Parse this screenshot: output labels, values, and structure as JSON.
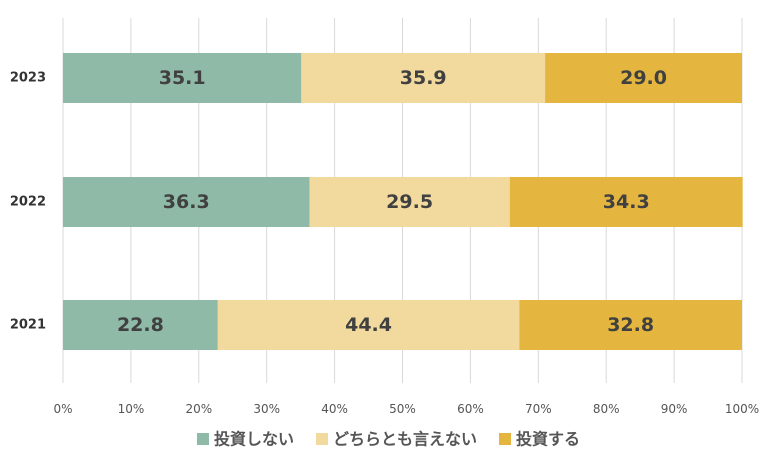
{
  "chart_data": {
    "type": "bar",
    "orientation": "horizontal",
    "stacked": true,
    "title": "",
    "xlabel": "",
    "ylabel": "",
    "xlim": [
      0,
      100
    ],
    "x_ticks": [
      "0%",
      "10%",
      "20%",
      "30%",
      "40%",
      "50%",
      "60%",
      "70%",
      "80%",
      "90%",
      "100%"
    ],
    "categories": [
      "2023",
      "2022",
      "2021"
    ],
    "series": [
      {
        "name": "投資しない",
        "color": "#8fbaa7",
        "values": [
          35.1,
          36.3,
          22.8
        ],
        "labels": [
          "35.1",
          "36.3",
          "22.8"
        ]
      },
      {
        "name": "どちらとも言えない",
        "color": "#f2da9f",
        "values": [
          35.9,
          29.5,
          44.4
        ],
        "labels": [
          "35.9",
          "29.5",
          "44.4"
        ]
      },
      {
        "name": "投資する",
        "color": "#e4b640",
        "values": [
          29.0,
          34.3,
          32.8
        ],
        "labels": [
          "29.0",
          "34.3",
          "32.8"
        ]
      }
    ],
    "grid": true,
    "legend_position": "bottom"
  }
}
